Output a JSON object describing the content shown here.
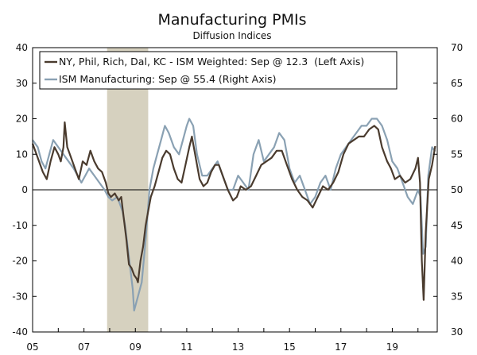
{
  "chart_data": {
    "type": "line",
    "title": "Manufacturing PMIs",
    "subtitle": "Diffusion Indices",
    "x_range": [
      2005.0,
      2020.75
    ],
    "x_tick_values": [
      2005,
      2007,
      2009,
      2011,
      2013,
      2015,
      2017,
      2019
    ],
    "x_tick_labels": [
      "05",
      "07",
      "09",
      "11",
      "13",
      "15",
      "17",
      "19"
    ],
    "left_axis": {
      "ylim": [
        -40,
        40
      ],
      "ticks": [
        -40,
        -30,
        -20,
        -10,
        0,
        10,
        20,
        30,
        40
      ]
    },
    "right_axis": {
      "ylim": [
        30,
        70
      ],
      "ticks": [
        30,
        35,
        40,
        45,
        50,
        55,
        60,
        65,
        70
      ]
    },
    "recession": {
      "start": 2007.9,
      "end": 2009.5
    },
    "zero_line": 0,
    "legend_position": "top-left",
    "colors": {
      "regional": "#4a3b2e",
      "ism": "#8aa1b3",
      "recession": "#d6d1bf",
      "axis": "#000000"
    },
    "series": [
      {
        "name": "NY, Phil, Rich, Dal, KC - ISM Weighted: Sep @ 12.3  (Left Axis)",
        "axis": "left",
        "points": [
          [
            2005.0,
            13
          ],
          [
            2005.2,
            9
          ],
          [
            2005.4,
            5
          ],
          [
            2005.55,
            3
          ],
          [
            2005.7,
            8
          ],
          [
            2005.85,
            12
          ],
          [
            2006.0,
            10
          ],
          [
            2006.1,
            8
          ],
          [
            2006.2,
            12
          ],
          [
            2006.25,
            19
          ],
          [
            2006.35,
            12
          ],
          [
            2006.5,
            9
          ],
          [
            2006.65,
            6
          ],
          [
            2006.8,
            3
          ],
          [
            2006.95,
            8
          ],
          [
            2007.1,
            7
          ],
          [
            2007.25,
            11
          ],
          [
            2007.4,
            8
          ],
          [
            2007.55,
            6
          ],
          [
            2007.7,
            5
          ],
          [
            2007.85,
            2
          ],
          [
            2007.95,
            -1
          ],
          [
            2008.05,
            -2
          ],
          [
            2008.2,
            -1
          ],
          [
            2008.35,
            -3
          ],
          [
            2008.45,
            -2
          ],
          [
            2008.55,
            -8
          ],
          [
            2008.65,
            -14
          ],
          [
            2008.75,
            -21
          ],
          [
            2008.85,
            -22
          ],
          [
            2008.95,
            -24
          ],
          [
            2009.05,
            -25
          ],
          [
            2009.1,
            -26
          ],
          [
            2009.2,
            -20
          ],
          [
            2009.3,
            -16
          ],
          [
            2009.4,
            -10
          ],
          [
            2009.5,
            -6
          ],
          [
            2009.6,
            -2
          ],
          [
            2009.75,
            1
          ],
          [
            2009.9,
            5
          ],
          [
            2010.05,
            9
          ],
          [
            2010.2,
            11
          ],
          [
            2010.35,
            10
          ],
          [
            2010.5,
            6
          ],
          [
            2010.65,
            3
          ],
          [
            2010.8,
            2
          ],
          [
            2010.95,
            7
          ],
          [
            2011.1,
            12
          ],
          [
            2011.2,
            15
          ],
          [
            2011.35,
            9
          ],
          [
            2011.5,
            3
          ],
          [
            2011.65,
            1
          ],
          [
            2011.8,
            2
          ],
          [
            2011.95,
            5
          ],
          [
            2012.1,
            7
          ],
          [
            2012.25,
            7
          ],
          [
            2012.4,
            4
          ],
          [
            2012.6,
            0
          ],
          [
            2012.8,
            -3
          ],
          [
            2012.95,
            -2
          ],
          [
            2013.1,
            1
          ],
          [
            2013.3,
            0
          ],
          [
            2013.5,
            1
          ],
          [
            2013.7,
            4
          ],
          [
            2013.9,
            7
          ],
          [
            2014.1,
            8
          ],
          [
            2014.3,
            9
          ],
          [
            2014.5,
            11
          ],
          [
            2014.7,
            11
          ],
          [
            2014.9,
            7
          ],
          [
            2015.1,
            3
          ],
          [
            2015.3,
            0
          ],
          [
            2015.5,
            -2
          ],
          [
            2015.7,
            -3
          ],
          [
            2015.9,
            -5
          ],
          [
            2016.1,
            -2
          ],
          [
            2016.3,
            1
          ],
          [
            2016.5,
            0
          ],
          [
            2016.7,
            2
          ],
          [
            2016.9,
            5
          ],
          [
            2017.1,
            10
          ],
          [
            2017.3,
            13
          ],
          [
            2017.5,
            14
          ],
          [
            2017.7,
            15
          ],
          [
            2017.9,
            15
          ],
          [
            2018.1,
            17
          ],
          [
            2018.3,
            18
          ],
          [
            2018.45,
            17
          ],
          [
            2018.6,
            12
          ],
          [
            2018.8,
            8
          ],
          [
            2018.95,
            6
          ],
          [
            2019.1,
            3
          ],
          [
            2019.3,
            4
          ],
          [
            2019.5,
            2
          ],
          [
            2019.7,
            3
          ],
          [
            2019.9,
            6
          ],
          [
            2020.0,
            9
          ],
          [
            2020.08,
            2
          ],
          [
            2020.15,
            -20
          ],
          [
            2020.22,
            -31
          ],
          [
            2020.3,
            -12
          ],
          [
            2020.42,
            3
          ],
          [
            2020.55,
            7
          ],
          [
            2020.67,
            12.3
          ]
        ]
      },
      {
        "name": "ISM Manufacturing: Sep @ 55.4 (Right Axis)",
        "axis": "right",
        "points": [
          [
            2005.0,
            57
          ],
          [
            2005.2,
            56
          ],
          [
            2005.35,
            54
          ],
          [
            2005.5,
            53
          ],
          [
            2005.65,
            55
          ],
          [
            2005.8,
            57
          ],
          [
            2006.0,
            56
          ],
          [
            2006.2,
            55
          ],
          [
            2006.4,
            54
          ],
          [
            2006.6,
            53
          ],
          [
            2006.75,
            52
          ],
          [
            2006.9,
            51
          ],
          [
            2007.05,
            52
          ],
          [
            2007.2,
            53
          ],
          [
            2007.4,
            52
          ],
          [
            2007.6,
            51
          ],
          [
            2007.8,
            50
          ],
          [
            2007.95,
            49
          ],
          [
            2008.1,
            48.5
          ],
          [
            2008.3,
            49
          ],
          [
            2008.5,
            47
          ],
          [
            2008.6,
            45
          ],
          [
            2008.7,
            42
          ],
          [
            2008.8,
            39
          ],
          [
            2008.9,
            36
          ],
          [
            2008.95,
            33
          ],
          [
            2009.1,
            35
          ],
          [
            2009.25,
            37
          ],
          [
            2009.4,
            43
          ],
          [
            2009.55,
            50
          ],
          [
            2009.7,
            53
          ],
          [
            2009.85,
            55
          ],
          [
            2010.0,
            57
          ],
          [
            2010.15,
            59
          ],
          [
            2010.3,
            58
          ],
          [
            2010.5,
            56
          ],
          [
            2010.7,
            55
          ],
          [
            2010.85,
            57
          ],
          [
            2011.0,
            59
          ],
          [
            2011.1,
            60
          ],
          [
            2011.25,
            59
          ],
          [
            2011.4,
            55
          ],
          [
            2011.6,
            52
          ],
          [
            2011.8,
            52
          ],
          [
            2012.0,
            53
          ],
          [
            2012.2,
            54
          ],
          [
            2012.4,
            52
          ],
          [
            2012.6,
            50
          ],
          [
            2012.8,
            50
          ],
          [
            2013.0,
            52
          ],
          [
            2013.2,
            51
          ],
          [
            2013.4,
            50
          ],
          [
            2013.6,
            55
          ],
          [
            2013.8,
            57
          ],
          [
            2014.0,
            54
          ],
          [
            2014.2,
            55
          ],
          [
            2014.4,
            56
          ],
          [
            2014.6,
            58
          ],
          [
            2014.8,
            57
          ],
          [
            2015.0,
            53
          ],
          [
            2015.2,
            51
          ],
          [
            2015.4,
            52
          ],
          [
            2015.6,
            50
          ],
          [
            2015.8,
            48
          ],
          [
            2016.0,
            49
          ],
          [
            2016.2,
            51
          ],
          [
            2016.4,
            52
          ],
          [
            2016.6,
            50
          ],
          [
            2016.8,
            53
          ],
          [
            2017.0,
            55
          ],
          [
            2017.2,
            56
          ],
          [
            2017.4,
            57
          ],
          [
            2017.6,
            58
          ],
          [
            2017.8,
            59
          ],
          [
            2018.0,
            59
          ],
          [
            2018.2,
            60
          ],
          [
            2018.4,
            60
          ],
          [
            2018.6,
            59
          ],
          [
            2018.8,
            57
          ],
          [
            2019.0,
            54
          ],
          [
            2019.2,
            53
          ],
          [
            2019.4,
            51
          ],
          [
            2019.6,
            49
          ],
          [
            2019.8,
            48
          ],
          [
            2020.0,
            50
          ],
          [
            2020.1,
            49
          ],
          [
            2020.2,
            41
          ],
          [
            2020.3,
            42
          ],
          [
            2020.4,
            52
          ],
          [
            2020.55,
            56
          ],
          [
            2020.67,
            55.4
          ]
        ]
      }
    ]
  }
}
